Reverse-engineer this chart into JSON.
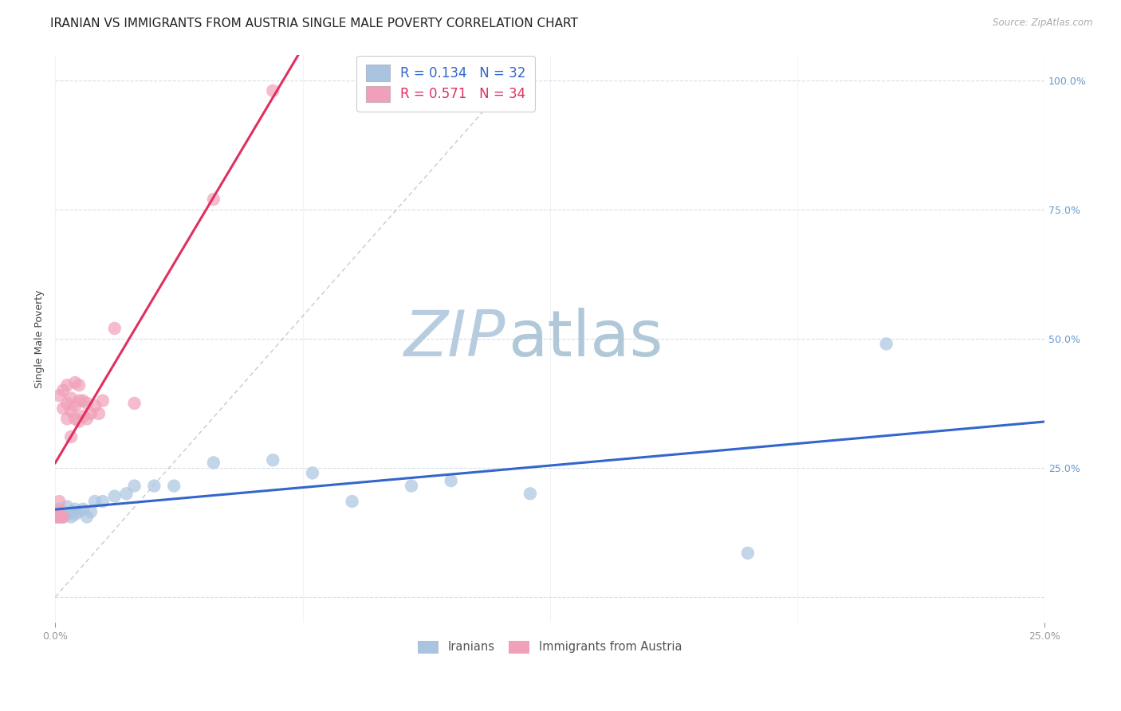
{
  "title": "IRANIAN VS IMMIGRANTS FROM AUSTRIA SINGLE MALE POVERTY CORRELATION CHART",
  "source": "Source: ZipAtlas.com",
  "ylabel": "Single Male Poverty",
  "iranians_color": "#aac4e0",
  "austria_color": "#f0a0b8",
  "iranians_line_color": "#3366cc",
  "austria_line_color": "#e03060",
  "diag_line_color": "#c8b0bc",
  "watermark_zip_color": "#b8cce0",
  "watermark_atlas_color": "#b0c8d8",
  "background_color": "#ffffff",
  "grid_color": "#d4dfe8",
  "iranians_x": [
    0.0005,
    0.001,
    0.001,
    0.0015,
    0.002,
    0.002,
    0.003,
    0.003,
    0.004,
    0.004,
    0.005,
    0.005,
    0.006,
    0.007,
    0.008,
    0.009,
    0.01,
    0.012,
    0.015,
    0.018,
    0.02,
    0.025,
    0.03,
    0.04,
    0.055,
    0.065,
    0.075,
    0.09,
    0.1,
    0.12,
    0.175,
    0.21
  ],
  "iranians_y": [
    0.165,
    0.155,
    0.17,
    0.16,
    0.155,
    0.165,
    0.16,
    0.175,
    0.155,
    0.165,
    0.17,
    0.16,
    0.165,
    0.17,
    0.155,
    0.165,
    0.185,
    0.185,
    0.195,
    0.2,
    0.215,
    0.215,
    0.215,
    0.26,
    0.265,
    0.24,
    0.185,
    0.215,
    0.225,
    0.2,
    0.085,
    0.49
  ],
  "austria_x": [
    0.0003,
    0.0005,
    0.0008,
    0.001,
    0.001,
    0.001,
    0.0015,
    0.002,
    0.002,
    0.002,
    0.003,
    0.003,
    0.003,
    0.004,
    0.004,
    0.004,
    0.005,
    0.005,
    0.005,
    0.006,
    0.006,
    0.006,
    0.007,
    0.007,
    0.008,
    0.008,
    0.009,
    0.01,
    0.011,
    0.012,
    0.015,
    0.02,
    0.04,
    0.055
  ],
  "austria_y": [
    0.155,
    0.155,
    0.16,
    0.155,
    0.185,
    0.39,
    0.155,
    0.155,
    0.365,
    0.4,
    0.345,
    0.375,
    0.41,
    0.31,
    0.36,
    0.385,
    0.345,
    0.37,
    0.415,
    0.34,
    0.38,
    0.41,
    0.35,
    0.38,
    0.345,
    0.375,
    0.355,
    0.37,
    0.355,
    0.38,
    0.52,
    0.375,
    0.77,
    0.98
  ],
  "R_iranians": 0.134,
  "N_iranians": 32,
  "R_austria": 0.571,
  "N_austria": 34,
  "xmin": 0.0,
  "xmax": 0.25,
  "ymin": -0.05,
  "ymax": 1.05,
  "yticks": [
    0.0,
    0.25,
    0.5,
    0.75,
    1.0
  ],
  "ytick_labels_right": [
    "",
    "25.0%",
    "50.0%",
    "75.0%",
    "100.0%"
  ],
  "xticks": [
    0.0,
    0.25
  ],
  "xtick_labels": [
    "0.0%",
    "25.0%"
  ],
  "title_fontsize": 11,
  "tick_fontsize": 9,
  "ylabel_fontsize": 9,
  "source_fontsize": 8.5
}
